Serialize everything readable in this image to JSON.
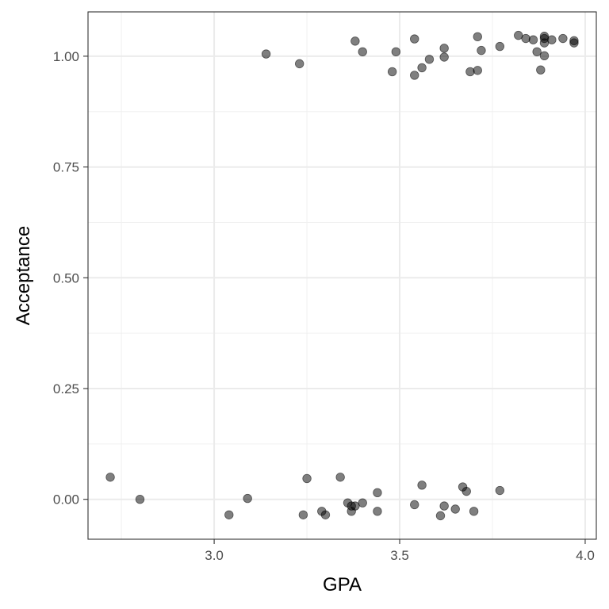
{
  "chart_data": {
    "type": "scatter",
    "xlabel": "GPA",
    "ylabel": "Acceptance",
    "xlim": [
      2.66,
      4.03
    ],
    "ylim": [
      -0.09,
      1.1
    ],
    "x_major_ticks": [
      3.0,
      3.5,
      4.0
    ],
    "x_minor_ticks": [
      2.75,
      3.25,
      3.75
    ],
    "x_tick_labels": [
      "3.0",
      "3.5",
      "4.0"
    ],
    "y_major_ticks": [
      0.0,
      0.25,
      0.5,
      0.75,
      1.0
    ],
    "y_minor_ticks": [
      0.125,
      0.375,
      0.625,
      0.875
    ],
    "y_tick_labels": [
      "0.00",
      "0.25",
      "0.50",
      "0.75",
      "1.00"
    ],
    "grid": true,
    "legend": "none",
    "point_color": "#000000",
    "point_alpha": 0.5,
    "points": [
      {
        "x": 2.72,
        "y": 0.05
      },
      {
        "x": 2.8,
        "y": 0.0
      },
      {
        "x": 3.04,
        "y": -0.035
      },
      {
        "x": 3.09,
        "y": 0.002
      },
      {
        "x": 3.24,
        "y": -0.035
      },
      {
        "x": 3.25,
        "y": 0.047
      },
      {
        "x": 3.29,
        "y": -0.027
      },
      {
        "x": 3.3,
        "y": -0.035
      },
      {
        "x": 3.34,
        "y": 0.05
      },
      {
        "x": 3.36,
        "y": -0.008
      },
      {
        "x": 3.37,
        "y": -0.015
      },
      {
        "x": 3.37,
        "y": -0.027
      },
      {
        "x": 3.38,
        "y": -0.015
      },
      {
        "x": 3.4,
        "y": -0.008
      },
      {
        "x": 3.44,
        "y": 0.015
      },
      {
        "x": 3.44,
        "y": -0.027
      },
      {
        "x": 3.54,
        "y": -0.012
      },
      {
        "x": 3.56,
        "y": 0.032
      },
      {
        "x": 3.61,
        "y": -0.037
      },
      {
        "x": 3.62,
        "y": -0.015
      },
      {
        "x": 3.65,
        "y": -0.022
      },
      {
        "x": 3.67,
        "y": 0.028
      },
      {
        "x": 3.68,
        "y": 0.018
      },
      {
        "x": 3.7,
        "y": -0.027
      },
      {
        "x": 3.77,
        "y": 0.02
      },
      {
        "x": 3.14,
        "y": 1.005
      },
      {
        "x": 3.23,
        "y": 0.983
      },
      {
        "x": 3.38,
        "y": 1.034
      },
      {
        "x": 3.4,
        "y": 1.01
      },
      {
        "x": 3.48,
        "y": 0.965
      },
      {
        "x": 3.49,
        "y": 1.01
      },
      {
        "x": 3.54,
        "y": 1.039
      },
      {
        "x": 3.54,
        "y": 0.957
      },
      {
        "x": 3.56,
        "y": 0.974
      },
      {
        "x": 3.58,
        "y": 0.993
      },
      {
        "x": 3.62,
        "y": 1.018
      },
      {
        "x": 3.62,
        "y": 0.998
      },
      {
        "x": 3.69,
        "y": 0.965
      },
      {
        "x": 3.71,
        "y": 1.044
      },
      {
        "x": 3.71,
        "y": 0.968
      },
      {
        "x": 3.72,
        "y": 1.013
      },
      {
        "x": 3.77,
        "y": 1.022
      },
      {
        "x": 3.82,
        "y": 1.047
      },
      {
        "x": 3.84,
        "y": 1.04
      },
      {
        "x": 3.86,
        "y": 1.037
      },
      {
        "x": 3.87,
        "y": 1.01
      },
      {
        "x": 3.88,
        "y": 0.969
      },
      {
        "x": 3.89,
        "y": 1.045
      },
      {
        "x": 3.89,
        "y": 1.04
      },
      {
        "x": 3.89,
        "y": 1.03
      },
      {
        "x": 3.89,
        "y": 1.001
      },
      {
        "x": 3.91,
        "y": 1.037
      },
      {
        "x": 3.94,
        "y": 1.04
      },
      {
        "x": 3.97,
        "y": 1.035
      },
      {
        "x": 3.97,
        "y": 1.03
      }
    ]
  }
}
